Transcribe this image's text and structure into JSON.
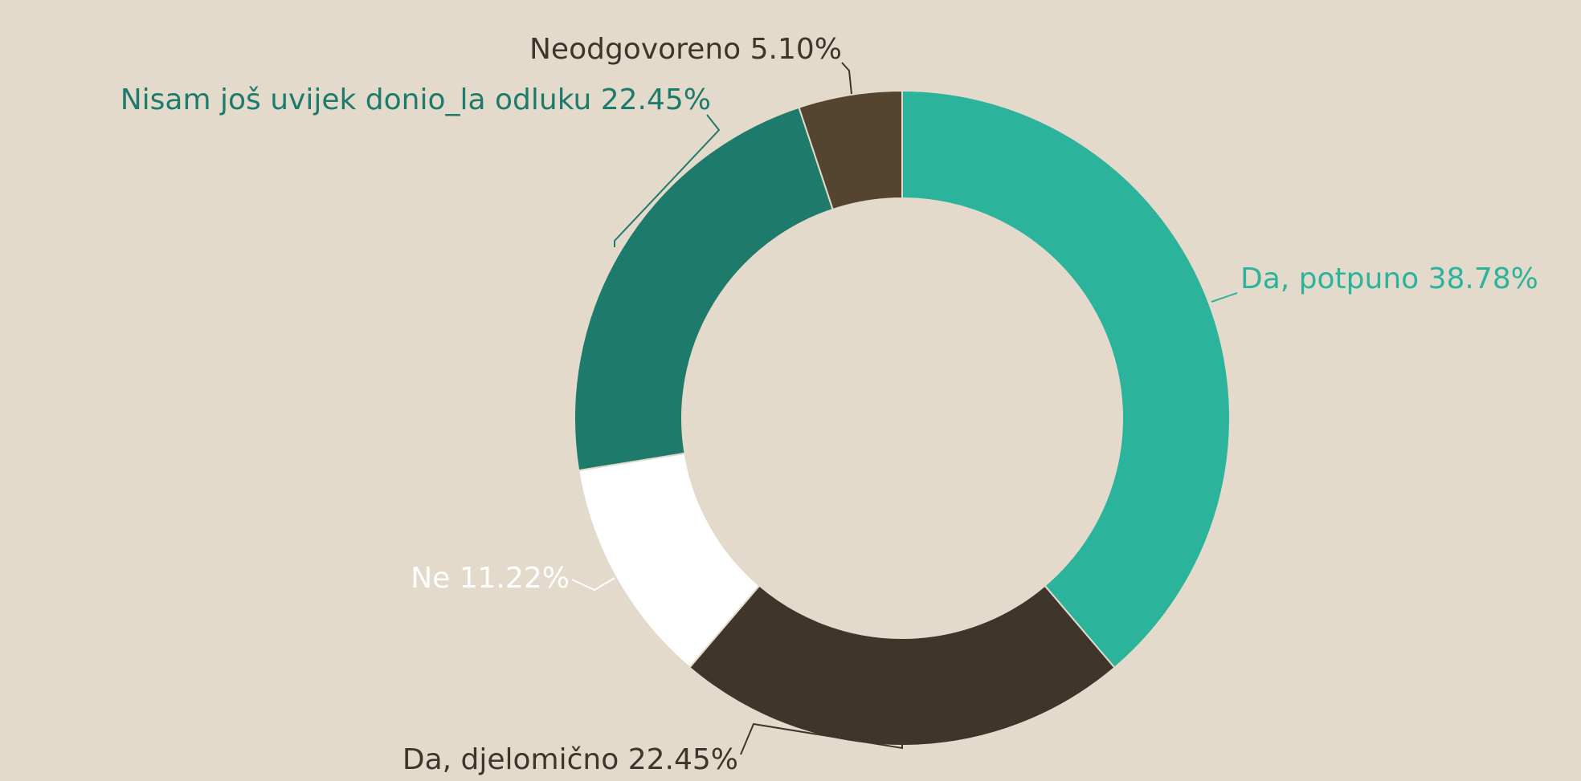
{
  "chart_data": {
    "type": "donut",
    "categories": [
      "Da, potpuno",
      "Da, djelomično",
      "Ne",
      "Nisam još uvijek donio_la odluku",
      "Neodgovoreno"
    ],
    "values": [
      38.78,
      22.45,
      11.22,
      22.45,
      5.1
    ],
    "value_labels": [
      "38.78%",
      "22.45%",
      "11.22%",
      "22.45%",
      "5.10%"
    ],
    "colors": [
      "#2bb39b",
      "#40352a",
      "#ffffff",
      "#1e7a6a",
      "#55442f"
    ],
    "label_colors": [
      "#2bb39b",
      "#40352a",
      "#ffffff",
      "#1e7a6a",
      "#40352a"
    ]
  }
}
